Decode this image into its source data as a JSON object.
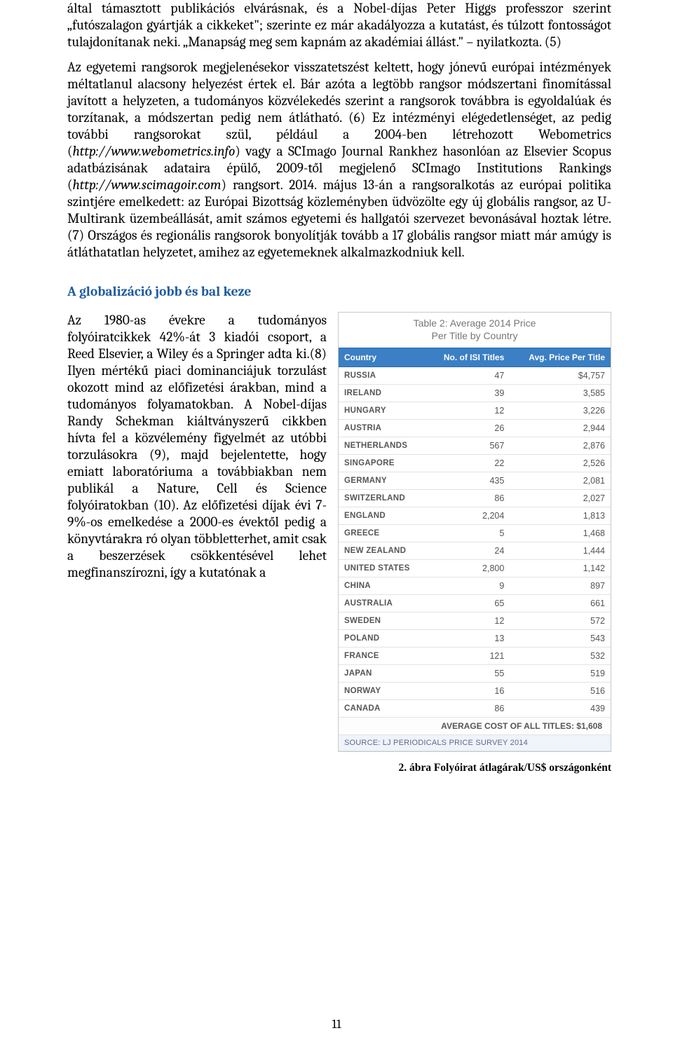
{
  "para1": "által támasztott publikációs elvárásnak, és a Nobel-díjas Peter Higgs professzor szerint „futószalagon gyártják a cikkeket\"; szerinte ez már akadályozza a kutatást, és túlzott fontosságot tulajdonítanak neki. „Manapság meg sem kapnám az akadémiai állást.\" – nyilatkozta. (5)",
  "para2_a": "Az egyetemi rangsorok megjelenésekor visszatetszést keltett, hogy jónevű európai intézmények méltatlanul alacsony helyezést értek el. Bár azóta a legtöbb rangsor módszertani finomítással javított a helyzeten, a tudományos közvélekedés szerint a rangsorok továbbra is egyoldalúak és torzítanak, a módszertan pedig nem átlátható. (6) Ez intézményi elégedetlenséget, az pedig további rangsorokat szül, például a 2004-ben létrehozott Webometrics (",
  "para2_url1": "http://www.webometrics.info",
  "para2_b": ") vagy a SCImago Journal Rankhez hasonlóan az Elsevier Scopus adatbázisának adataira épülő, 2009-től megjelenő SCImago Institutions Rankings (",
  "para2_url2": "http://www.scimagoir.com",
  "para2_c": ") rangsort. 2014. május 13-án a rangsoralkotás az európai politika szintjére emelkedett: az Európai Bizottság közleményben üdvözölte egy új globális rangsor, az U-Multirank üzembeállását, amit számos egyetemi és hallgatói szervezet bevonásával hoztak létre. (7) Országos és regionális rangsorok bonyolítják tovább a 17 globális rangsor miatt már amúgy is átláthatatlan helyzetet, amihez az egyetemeknek alkalmazkodniuk kell.",
  "heading": "A globalizáció jobb és bal keze",
  "para3": "Az 1980-as évekre a tudományos folyóiratcikkek 42%-át 3 kiadói csoport, a Reed Elsevier, a Wiley és a Springer adta ki.(8) Ilyen mértékű piaci dominanciájuk torzulást okozott mind az előfizetési árakban, mind a tudományos folyamatokban. A Nobel-díjas Randy Schekman kiáltványszerű cikkben hívta fel a közvélemény figyelmét az utóbbi torzulásokra (9), majd bejelentette, hogy emiatt laboratóriuma a továbbiakban nem publikál a Nature, Cell és Science folyóiratokban (10). Az előfizetési díjak évi 7-9%-os emelkedése a 2000-es évektől pedig a könyvtárakra ró olyan többletterhet, amit csak a beszerzések csökkentésével lehet megfinanszírozni, így a kutatónak a",
  "table": {
    "title_line1": "Table 2: Average 2014 Price",
    "title_line2": "Per Title by Country",
    "header": {
      "country": "Country",
      "titles": "No. of ISI Titles",
      "price": "Avg. Price Per Title"
    },
    "rows": [
      {
        "country": "RUSSIA",
        "titles": "47",
        "price": "$4,757"
      },
      {
        "country": "IRELAND",
        "titles": "39",
        "price": "3,585"
      },
      {
        "country": "HUNGARY",
        "titles": "12",
        "price": "3,226"
      },
      {
        "country": "AUSTRIA",
        "titles": "26",
        "price": "2,944"
      },
      {
        "country": "NETHERLANDS",
        "titles": "567",
        "price": "2,876"
      },
      {
        "country": "SINGAPORE",
        "titles": "22",
        "price": "2,526"
      },
      {
        "country": "GERMANY",
        "titles": "435",
        "price": "2,081"
      },
      {
        "country": "SWITZERLAND",
        "titles": "86",
        "price": "2,027"
      },
      {
        "country": "ENGLAND",
        "titles": "2,204",
        "price": "1,813"
      },
      {
        "country": "GREECE",
        "titles": "5",
        "price": "1,468"
      },
      {
        "country": "NEW ZEALAND",
        "titles": "24",
        "price": "1,444"
      },
      {
        "country": "UNITED STATES",
        "titles": "2,800",
        "price": "1,142"
      },
      {
        "country": "CHINA",
        "titles": "9",
        "price": "897"
      },
      {
        "country": "AUSTRALIA",
        "titles": "65",
        "price": "661"
      },
      {
        "country": "SWEDEN",
        "titles": "12",
        "price": "572"
      },
      {
        "country": "POLAND",
        "titles": "13",
        "price": "543"
      },
      {
        "country": "FRANCE",
        "titles": "121",
        "price": "532"
      },
      {
        "country": "JAPAN",
        "titles": "55",
        "price": "519"
      },
      {
        "country": "NORWAY",
        "titles": "16",
        "price": "516"
      },
      {
        "country": "CANADA",
        "titles": "86",
        "price": "439"
      }
    ],
    "average": "AVERAGE COST OF ALL TITLES: $1,608",
    "source": "SOURCE: LJ PERIODICALS PRICE SURVEY 2014"
  },
  "caption": "2. ábra Folyóirat átlagárak/US$ országonként",
  "page_number": "11"
}
